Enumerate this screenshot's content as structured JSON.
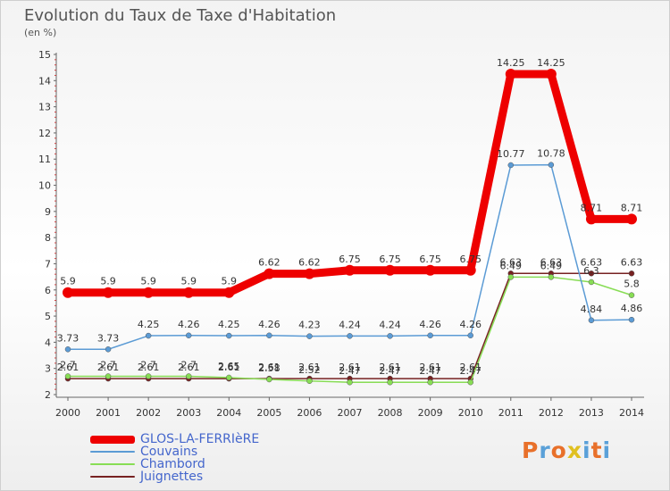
{
  "title": "Evolution du Taux de Taxe d'Habitation",
  "subtitle": "(en %)",
  "logo": {
    "text": "Proxiti",
    "colors": [
      "#e8702a",
      "#5aa0d8",
      "#e8702a",
      "#e0c020",
      "#5aa0d8",
      "#e8702a",
      "#5aa0d8"
    ]
  },
  "chart_data": {
    "type": "line",
    "title": "Evolution du Taux de Taxe d'Habitation",
    "ylabel": "(en %)",
    "x": [
      "2000",
      "2001",
      "2002",
      "2003",
      "2004",
      "2005",
      "2006",
      "2007",
      "2008",
      "2009",
      "2010",
      "2011",
      "2012",
      "2013",
      "2014"
    ],
    "ylim": [
      2,
      15
    ],
    "yticks": [
      2,
      3,
      4,
      5,
      6,
      7,
      8,
      9,
      10,
      11,
      12,
      13,
      14,
      15
    ],
    "grid": false,
    "legend_position": "bottom-left",
    "series": [
      {
        "name": "GLOS-LA-FERRIèRE",
        "color": "#ee0000",
        "values": [
          5.9,
          5.9,
          5.9,
          5.9,
          5.9,
          6.62,
          6.62,
          6.75,
          6.75,
          6.75,
          6.75,
          14.25,
          14.25,
          8.71,
          8.71
        ],
        "labels": [
          "5.9",
          "5.9",
          "5.9",
          "5.9",
          "5.9",
          "6.62",
          "6.62",
          "6.75",
          "6.75",
          "6.75",
          "6.75",
          "14.25",
          "14.25",
          "8.71",
          "8.71"
        ]
      },
      {
        "name": "Couvains",
        "color": "#5b9bd5",
        "values": [
          3.73,
          3.73,
          4.25,
          4.26,
          4.25,
          4.26,
          4.23,
          4.24,
          4.24,
          4.26,
          4.26,
          10.77,
          10.78,
          4.84,
          4.86
        ],
        "labels": [
          "3.73",
          "3.73",
          "4.25",
          "4.26",
          "4.25",
          "4.26",
          "4.23",
          "4.24",
          "4.24",
          "4.26",
          "4.26",
          "10.77",
          "10.78",
          "4.84",
          "4.86"
        ]
      },
      {
        "name": "Chambord",
        "color": "#88dd55",
        "values": [
          2.7,
          2.7,
          2.7,
          2.7,
          2.65,
          2.58,
          2.52,
          2.47,
          2.47,
          2.47,
          2.47,
          6.49,
          6.49,
          6.3,
          5.8
        ],
        "labels": [
          "2.7",
          "2.7",
          "2.7",
          "2.7",
          "2.65",
          "2.58",
          "2.52",
          "2.47",
          "2.47",
          "2.47",
          "2.47",
          "6.49",
          "6.49",
          "6.3",
          "5.8"
        ]
      },
      {
        "name": "Juignettes",
        "color": "#772222",
        "values": [
          2.61,
          2.61,
          2.61,
          2.61,
          2.61,
          2.61,
          2.61,
          2.61,
          2.61,
          2.61,
          2.61,
          6.63,
          6.63,
          6.63,
          6.63
        ],
        "labels": [
          "2.61",
          "2.61",
          "2.61",
          "2.61",
          "2.61",
          "2.61",
          "2.61",
          "2.61",
          "2.61",
          "2.61",
          "2.61",
          "6.63",
          "6.63",
          "6.63",
          "6.63"
        ]
      }
    ]
  }
}
